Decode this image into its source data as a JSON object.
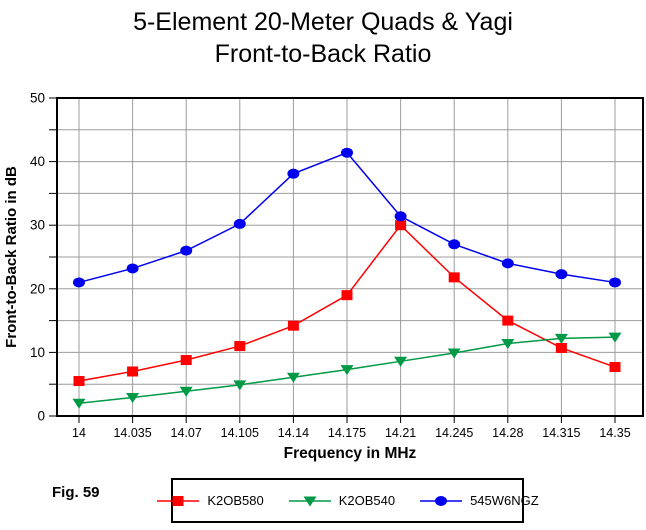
{
  "title_line1": "5-Element 20-Meter Quads & Yagi",
  "title_line2": "Front-to-Back Ratio",
  "fig_label": "Fig. 59",
  "colors": {
    "background": "#FFFFFF",
    "grid": "#9C9C9C",
    "axis": "#000000",
    "red_series": "#FF0000",
    "green_series": "#009945",
    "blue_series": "#0000EE"
  },
  "chart_data": {
    "type": "line",
    "title": "5-Element 20-Meter Quads & Yagi Front-to-Back Ratio",
    "xlabel": "Frequency in MHz",
    "ylabel": "Front-to-Back Ratio in dB",
    "x": [
      14,
      14.035,
      14.07,
      14.105,
      14.14,
      14.175,
      14.21,
      14.245,
      14.28,
      14.315,
      14.35
    ],
    "x_tick_labels": [
      "14",
      "14.035",
      "14.07",
      "14.105",
      "14.14",
      "14.175",
      "14.21",
      "14.245",
      "14.28",
      "14.315",
      "14.35"
    ],
    "y_tick_labels": [
      "0",
      "10",
      "20",
      "30",
      "40",
      "50"
    ],
    "y_major_ticks": [
      0,
      10,
      20,
      30,
      40,
      50
    ],
    "y_minor_step": 5,
    "ylim": [
      0,
      50
    ],
    "grid": true,
    "legend_position": "bottom",
    "series": [
      {
        "name": "K2OB580",
        "color": "#FF0000",
        "marker": "square",
        "values": [
          5.5,
          7.0,
          8.8,
          11.0,
          14.2,
          19.0,
          30.0,
          21.8,
          15.0,
          10.7,
          7.7
        ]
      },
      {
        "name": "K2OB540",
        "color": "#009945",
        "marker": "triangle-down",
        "values": [
          2.0,
          2.9,
          3.9,
          4.9,
          6.1,
          7.3,
          8.6,
          9.9,
          11.4,
          12.2,
          12.4
        ]
      },
      {
        "name": "545W6NGZ",
        "color": "#0000EE",
        "marker": "circle",
        "values": [
          21.0,
          23.2,
          26.0,
          30.2,
          38.1,
          41.4,
          31.4,
          27.0,
          24.0,
          22.3,
          21.0
        ]
      }
    ]
  }
}
